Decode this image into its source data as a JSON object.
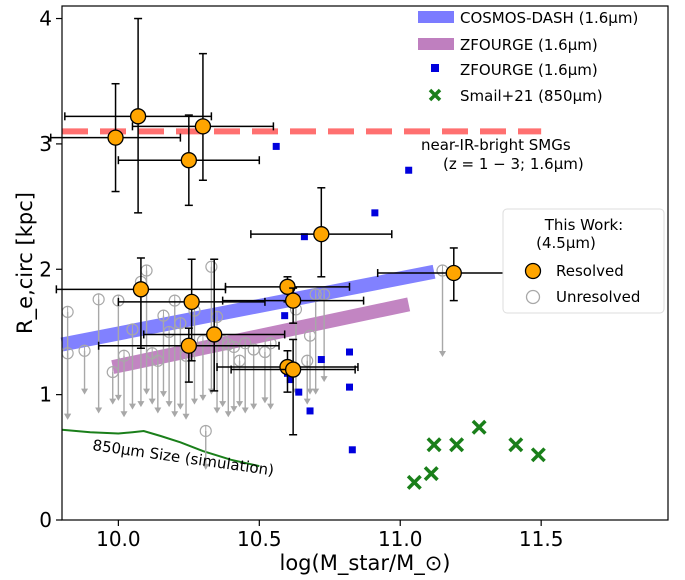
{
  "chart_data": {
    "type": "scatter",
    "xlabel": "log(M_star/M_⊙)",
    "ylabel": "R_e,circ [kpc]",
    "xlim": [
      9.8,
      11.95
    ],
    "ylim": [
      0,
      4.1
    ],
    "xticks": [
      10.0,
      10.5,
      11.0,
      11.5
    ],
    "xtick_labels": [
      "10.0",
      "10.5",
      "11.0",
      "11.5"
    ],
    "yticks": [
      0,
      1,
      2,
      3,
      4
    ],
    "ytick_labels": [
      "0",
      "1",
      "2",
      "3",
      "4"
    ],
    "grid": false,
    "legend_main": {
      "placement": "top-right",
      "entries": [
        {
          "label": "COSMOS-DASH (1.6μm)",
          "marker": "band",
          "color": "#7b7bff"
        },
        {
          "label": "ZFOURGE (1.6μm)",
          "marker": "band",
          "color": "#bf7fbf"
        },
        {
          "label": "ZFOURGE (1.6μm)",
          "marker": "square",
          "color": "#0000dd"
        },
        {
          "label": "Smail+21 (850μm)",
          "marker": "x",
          "color": "#1a7f1a"
        }
      ]
    },
    "legend_work": {
      "placement": "center-right",
      "title_line1": "This Work:",
      "title_line2": "(4.5μm)",
      "entries": [
        {
          "label": "Resolved",
          "marker": "orange-circle"
        },
        {
          "label": "Unresolved",
          "marker": "gray-open-circle"
        }
      ]
    },
    "bands": [
      {
        "name": "COSMOS-DASH (1.6μm)",
        "color": "#7b7bff",
        "x": [
          9.8,
          11.12
        ],
        "y": [
          1.4,
          1.98
        ]
      },
      {
        "name": "ZFOURGE (1.6μm)",
        "color": "#bf7fbf",
        "x": [
          9.98,
          11.03
        ],
        "y": [
          1.22,
          1.72
        ]
      }
    ],
    "smg_line": {
      "label_line1": "near-IR-bright SMGs",
      "label_line2": "(z = 1 − 3; 1.6μm)",
      "y": 3.1,
      "x": [
        9.8,
        11.5
      ],
      "color": "#ff7070"
    },
    "simulation": {
      "label": "850μm Size (simulation)",
      "color": "#1a7f1a",
      "x": [
        9.8,
        9.9,
        10.0,
        10.05,
        10.09,
        10.15,
        10.22,
        10.3,
        10.4,
        10.5
      ],
      "y": [
        0.72,
        0.7,
        0.69,
        0.7,
        0.71,
        0.67,
        0.62,
        0.55,
        0.48,
        0.43
      ]
    },
    "zfourge_points": {
      "color": "#0000dd",
      "x": [
        10.56,
        10.59,
        10.6,
        10.61,
        10.62,
        10.64,
        10.66,
        10.68,
        10.72,
        10.82,
        10.82,
        10.83,
        10.91,
        11.03
      ],
      "y": [
        2.98,
        1.63,
        1.17,
        1.12,
        1.18,
        1.02,
        2.26,
        0.87,
        1.28,
        1.34,
        1.06,
        0.56,
        2.45,
        2.79
      ]
    },
    "smail_points": {
      "color": "#1a7f1a",
      "x": [
        11.05,
        11.11,
        11.12,
        11.2,
        11.28,
        11.41,
        11.49
      ],
      "y": [
        0.3,
        0.37,
        0.6,
        0.6,
        0.74,
        0.6,
        0.52
      ]
    },
    "resolved": {
      "fill": "#ffa500",
      "points": [
        {
          "x": 9.99,
          "y": 3.05,
          "xerr": 0.23,
          "yerr_lo": 0.43,
          "yerr_hi": 0.43
        },
        {
          "x": 10.07,
          "y": 3.22,
          "xerr": 0.26,
          "yerr_lo": 0.77,
          "yerr_hi": 0.78
        },
        {
          "x": 10.25,
          "y": 2.87,
          "xerr": 0.25,
          "yerr_lo": 0.36,
          "yerr_hi": 0.36
        },
        {
          "x": 10.3,
          "y": 3.14,
          "xerr": 0.25,
          "yerr_lo": 0.43,
          "yerr_hi": 0.58
        },
        {
          "x": 10.72,
          "y": 2.28,
          "xerr": 0.25,
          "yerr_lo": 0.34,
          "yerr_hi": 0.37
        },
        {
          "x": 10.08,
          "y": 1.84,
          "xerr": 0.3,
          "yerr_lo": 0.47,
          "yerr_hi": 0.25
        },
        {
          "x": 10.26,
          "y": 1.74,
          "xerr": 0.26,
          "yerr_lo": 0.47,
          "yerr_hi": 0.34
        },
        {
          "x": 10.6,
          "y": 1.86,
          "xerr": 0.22,
          "yerr_lo": 0.12,
          "yerr_hi": 0.08
        },
        {
          "x": 10.62,
          "y": 1.75,
          "xerr": 0.25,
          "yerr_lo": 0.18,
          "yerr_hi": 0.1
        },
        {
          "x": 10.34,
          "y": 1.48,
          "xerr": 0.25,
          "yerr_lo": 0.45,
          "yerr_hi": 0.6
        },
        {
          "x": 10.25,
          "y": 1.39,
          "xerr": 0.32,
          "yerr_lo": 0.29,
          "yerr_hi": 0.14
        },
        {
          "x": 10.6,
          "y": 1.22,
          "xerr": 0.25,
          "yerr_lo": 0.2,
          "yerr_hi": 0.13
        },
        {
          "x": 10.62,
          "y": 1.2,
          "xerr": 0.22,
          "yerr_lo": 0.52,
          "yerr_hi": 0.24
        },
        {
          "x": 11.19,
          "y": 1.97,
          "xerr": 0.27,
          "yerr_lo": 0.22,
          "yerr_hi": 0.2
        }
      ]
    },
    "unresolved": {
      "color": "#a8a8a8",
      "points": [
        {
          "x": 9.82,
          "y": 1.66,
          "to": 0.8
        },
        {
          "x": 9.82,
          "y": 1.33,
          "to": 0.8
        },
        {
          "x": 9.88,
          "y": 1.35,
          "to": 1.0
        },
        {
          "x": 9.93,
          "y": 1.76,
          "to": 0.85
        },
        {
          "x": 9.98,
          "y": 1.18,
          "to": 0.92
        },
        {
          "x": 10.0,
          "y": 1.75,
          "to": 0.95
        },
        {
          "x": 10.02,
          "y": 1.31,
          "to": 0.82
        },
        {
          "x": 10.05,
          "y": 1.52,
          "to": 0.88
        },
        {
          "x": 10.08,
          "y": 1.9,
          "to": 0.9
        },
        {
          "x": 10.1,
          "y": 1.99,
          "to": 1.0
        },
        {
          "x": 10.12,
          "y": 1.33,
          "to": 0.92
        },
        {
          "x": 10.14,
          "y": 1.27,
          "to": 0.85
        },
        {
          "x": 10.16,
          "y": 1.63,
          "to": 0.98
        },
        {
          "x": 10.18,
          "y": 1.5,
          "to": 0.9
        },
        {
          "x": 10.2,
          "y": 1.75,
          "to": 0.82
        },
        {
          "x": 10.22,
          "y": 1.57,
          "to": 0.88
        },
        {
          "x": 10.24,
          "y": 1.31,
          "to": 0.8
        },
        {
          "x": 10.27,
          "y": 1.67,
          "to": 0.92
        },
        {
          "x": 10.3,
          "y": 1.43,
          "to": 0.95
        },
        {
          "x": 10.33,
          "y": 2.02,
          "to": 1.0
        },
        {
          "x": 10.35,
          "y": 1.62,
          "to": 0.85
        },
        {
          "x": 10.37,
          "y": 1.43,
          "to": 0.9
        },
        {
          "x": 10.39,
          "y": 1.4,
          "to": 0.82
        },
        {
          "x": 10.41,
          "y": 1.38,
          "to": 0.86
        },
        {
          "x": 10.43,
          "y": 1.27,
          "to": 0.9
        },
        {
          "x": 10.45,
          "y": 1.41,
          "to": 0.85
        },
        {
          "x": 10.48,
          "y": 1.36,
          "to": 0.88
        },
        {
          "x": 10.52,
          "y": 1.34,
          "to": 0.93
        },
        {
          "x": 10.54,
          "y": 1.41,
          "to": 0.88
        },
        {
          "x": 10.31,
          "y": 0.71,
          "to": 0.4
        },
        {
          "x": 10.63,
          "y": 1.68,
          "to": 1.0
        },
        {
          "x": 10.67,
          "y": 1.27,
          "to": 0.92
        },
        {
          "x": 10.68,
          "y": 1.47,
          "to": 1.0
        },
        {
          "x": 10.7,
          "y": 1.8,
          "to": 1.0
        },
        {
          "x": 10.73,
          "y": 1.8,
          "to": 1.1
        },
        {
          "x": 11.15,
          "y": 1.99,
          "to": 1.3
        }
      ]
    }
  }
}
